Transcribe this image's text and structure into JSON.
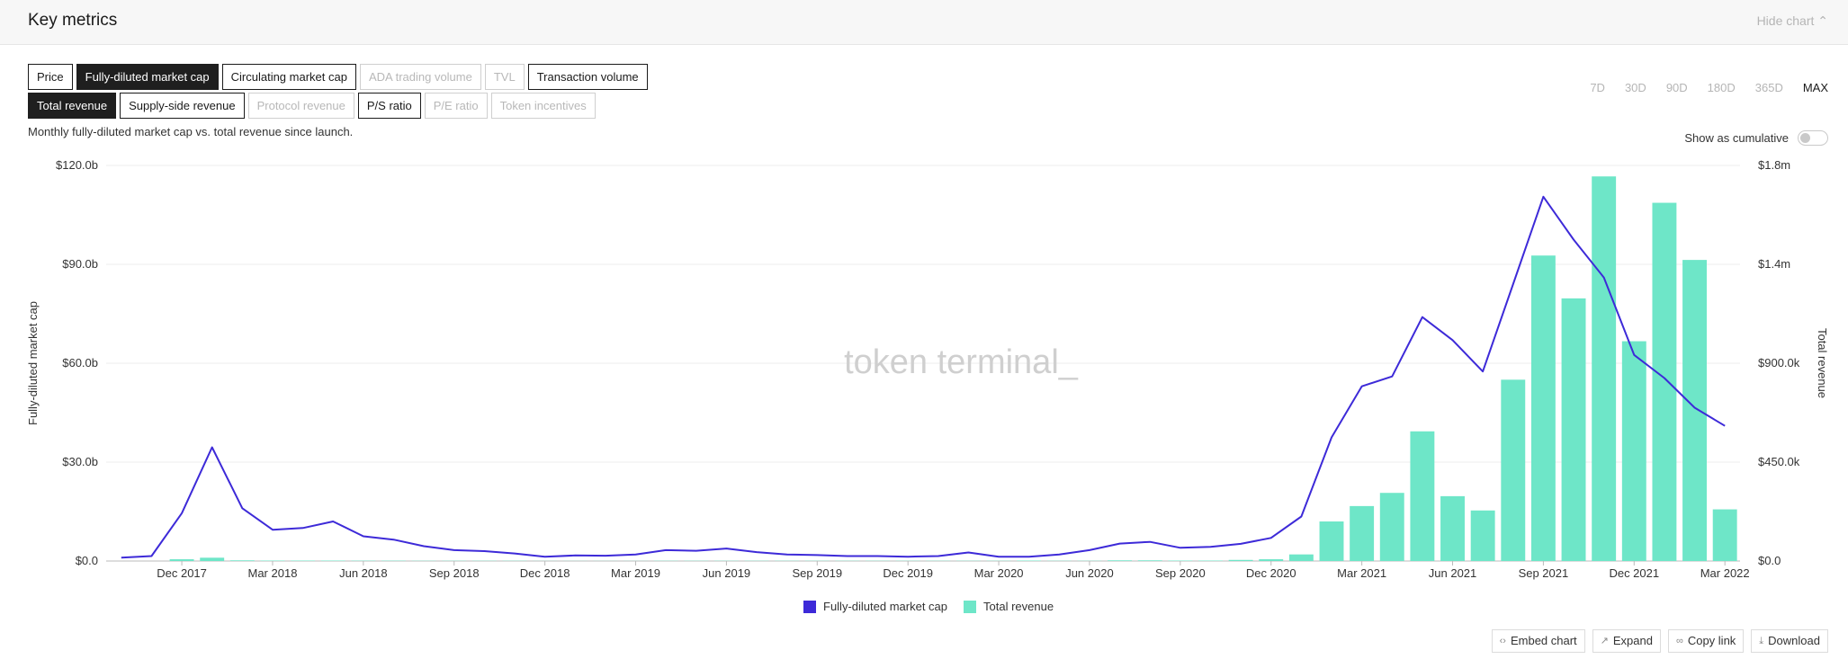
{
  "header": {
    "title": "Key metrics",
    "hide_label": "Hide chart ⌃"
  },
  "metric_buttons_row1": [
    {
      "label": "Price",
      "state": "normal"
    },
    {
      "label": "Fully-diluted market cap",
      "state": "active"
    },
    {
      "label": "Circulating market cap",
      "state": "normal"
    },
    {
      "label": "ADA trading volume",
      "state": "disabled"
    },
    {
      "label": "TVL",
      "state": "disabled"
    },
    {
      "label": "Transaction volume",
      "state": "normal"
    }
  ],
  "metric_buttons_row2": [
    {
      "label": "Total revenue",
      "state": "active"
    },
    {
      "label": "Supply-side revenue",
      "state": "normal"
    },
    {
      "label": "Protocol revenue",
      "state": "disabled"
    },
    {
      "label": "P/S ratio",
      "state": "normal"
    },
    {
      "label": "P/E ratio",
      "state": "disabled"
    },
    {
      "label": "Token incentives",
      "state": "disabled"
    }
  ],
  "time_ranges": [
    {
      "label": "7D",
      "active": false
    },
    {
      "label": "30D",
      "active": false
    },
    {
      "label": "90D",
      "active": false
    },
    {
      "label": "180D",
      "active": false
    },
    {
      "label": "365D",
      "active": false
    },
    {
      "label": "MAX",
      "active": true
    }
  ],
  "subtitle": "Monthly fully-diluted market cap vs. total revenue since launch.",
  "cumulative_label": "Show as cumulative",
  "watermark": "token terminal_",
  "legend": [
    {
      "label": "Fully-diluted market cap",
      "color": "#3d2ad8"
    },
    {
      "label": "Total revenue",
      "color": "#6ee6c8"
    }
  ],
  "actions": [
    {
      "icon": "code-icon",
      "glyph": "‹›",
      "label": "Embed chart"
    },
    {
      "icon": "expand-icon",
      "glyph": "↗",
      "label": "Expand"
    },
    {
      "icon": "link-icon",
      "glyph": "∞",
      "label": "Copy link"
    },
    {
      "icon": "download-icon",
      "glyph": "⤓",
      "label": "Download"
    }
  ],
  "chart_data": {
    "type": "bar+line",
    "x": [
      "2017-10",
      "2017-11",
      "2017-12",
      "2018-01",
      "2018-02",
      "2018-03",
      "2018-04",
      "2018-05",
      "2018-06",
      "2018-07",
      "2018-08",
      "2018-09",
      "2018-10",
      "2018-11",
      "2018-12",
      "2019-01",
      "2019-02",
      "2019-03",
      "2019-04",
      "2019-05",
      "2019-06",
      "2019-07",
      "2019-08",
      "2019-09",
      "2019-10",
      "2019-11",
      "2019-12",
      "2020-01",
      "2020-02",
      "2020-03",
      "2020-04",
      "2020-05",
      "2020-06",
      "2020-07",
      "2020-08",
      "2020-09",
      "2020-10",
      "2020-11",
      "2020-12",
      "2021-01",
      "2021-02",
      "2021-03",
      "2021-04",
      "2021-05",
      "2021-06",
      "2021-07",
      "2021-08",
      "2021-09",
      "2021-10",
      "2021-11",
      "2021-12",
      "2022-01",
      "2022-02",
      "2022-03"
    ],
    "x_tick_labels": [
      "Dec 2017",
      "Mar 2018",
      "Jun 2018",
      "Sep 2018",
      "Dec 2018",
      "Mar 2019",
      "Jun 2019",
      "Sep 2019",
      "Dec 2019",
      "Mar 2020",
      "Jun 2020",
      "Sep 2020",
      "Dec 2020",
      "Mar 2021",
      "Jun 2021",
      "Sep 2021",
      "Dec 2021",
      "Mar 2022"
    ],
    "series": [
      {
        "name": "Fully-diluted market cap",
        "kind": "line",
        "axis": "left",
        "color": "#3d2ad8",
        "values": [
          1.0,
          1.5,
          14.5,
          34.5,
          16.0,
          9.5,
          10.0,
          12.0,
          7.5,
          6.5,
          4.5,
          3.3,
          3.0,
          2.3,
          1.3,
          1.7,
          1.6,
          2.0,
          3.3,
          3.1,
          3.8,
          2.7,
          2.0,
          1.8,
          1.5,
          1.5,
          1.3,
          1.5,
          2.6,
          1.3,
          1.3,
          2.0,
          3.3,
          5.3,
          5.8,
          4.0,
          4.3,
          5.2,
          7.0,
          13.5,
          37.5,
          53.0,
          56.0,
          74.0,
          67.0,
          57.5,
          84.0,
          110.5,
          97.5,
          86.0,
          62.5,
          55.5,
          46.5,
          41.0
        ]
      },
      {
        "name": "Total revenue",
        "kind": "bar",
        "axis": "right",
        "color": "#6ee6c8",
        "values": [
          0,
          0,
          8000,
          15000,
          3000,
          2000,
          2000,
          2000,
          1500,
          1500,
          1000,
          1000,
          1000,
          1000,
          500,
          500,
          500,
          500,
          1000,
          1000,
          1000,
          1000,
          1000,
          1000,
          1000,
          1000,
          1000,
          1000,
          1000,
          1000,
          2000,
          1000,
          1000,
          3000,
          3000,
          2000,
          2000,
          5000,
          8000,
          30000,
          180000,
          250000,
          310000,
          590000,
          295000,
          230000,
          825000,
          1390000,
          1195000,
          1750000,
          1000000,
          1630000,
          1370000,
          235000
        ]
      }
    ],
    "ylabel_left": "Fully-diluted market cap",
    "ylabel_right": "Total revenue",
    "ylim_left": [
      0,
      120
    ],
    "ylim_right": [
      0,
      1800000
    ],
    "yticks_left": [
      "$0.0",
      "$30.0b",
      "$60.0b",
      "$90.0b",
      "$120.0b"
    ],
    "yticks_right": [
      "$0.0",
      "$450.0k",
      "$900.0k",
      "$1.4m",
      "$1.8m"
    ],
    "grid": true,
    "legend_position": "bottom-center"
  }
}
